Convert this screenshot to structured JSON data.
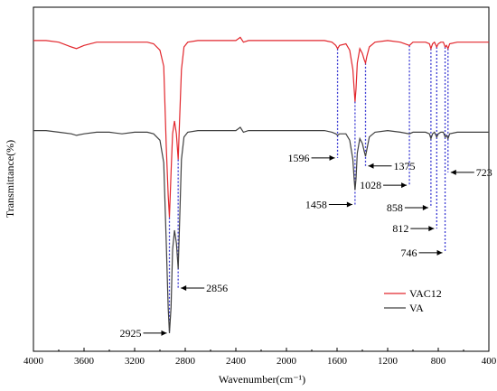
{
  "chart_data": {
    "type": "line",
    "title": "",
    "xlabel": "Wavenumber(cm⁻¹)",
    "ylabel": "Transmittance(%)",
    "xlim": [
      4000,
      400
    ],
    "x_reversed": true,
    "x_ticks": [
      4000,
      3600,
      3200,
      2800,
      2400,
      2000,
      1600,
      1200,
      800,
      400
    ],
    "y_tick_labels": false,
    "legend_position": "bottom-right",
    "series": [
      {
        "name": "VAC12",
        "color": "#e2272d",
        "baseline": 0.93,
        "points": [
          [
            4000,
            0.93
          ],
          [
            3900,
            0.93
          ],
          [
            3800,
            0.925
          ],
          [
            3700,
            0.91
          ],
          [
            3660,
            0.905
          ],
          [
            3600,
            0.915
          ],
          [
            3500,
            0.925
          ],
          [
            3400,
            0.925
          ],
          [
            3300,
            0.925
          ],
          [
            3200,
            0.925
          ],
          [
            3100,
            0.925
          ],
          [
            3050,
            0.92
          ],
          [
            3000,
            0.9
          ],
          [
            2970,
            0.85
          ],
          [
            2950,
            0.6
          ],
          [
            2935,
            0.45
          ],
          [
            2925,
            0.38
          ],
          [
            2912,
            0.52
          ],
          [
            2900,
            0.64
          ],
          [
            2885,
            0.68
          ],
          [
            2870,
            0.64
          ],
          [
            2856,
            0.56
          ],
          [
            2845,
            0.68
          ],
          [
            2830,
            0.84
          ],
          [
            2810,
            0.91
          ],
          [
            2780,
            0.925
          ],
          [
            2700,
            0.93
          ],
          [
            2600,
            0.93
          ],
          [
            2500,
            0.93
          ],
          [
            2400,
            0.93
          ],
          [
            2365,
            0.94
          ],
          [
            2340,
            0.925
          ],
          [
            2300,
            0.93
          ],
          [
            2200,
            0.93
          ],
          [
            2100,
            0.93
          ],
          [
            2000,
            0.93
          ],
          [
            1900,
            0.93
          ],
          [
            1800,
            0.93
          ],
          [
            1700,
            0.93
          ],
          [
            1640,
            0.925
          ],
          [
            1610,
            0.915
          ],
          [
            1596,
            0.905
          ],
          [
            1580,
            0.915
          ],
          [
            1530,
            0.92
          ],
          [
            1500,
            0.9
          ],
          [
            1475,
            0.84
          ],
          [
            1465,
            0.78
          ],
          [
            1458,
            0.74
          ],
          [
            1450,
            0.78
          ],
          [
            1440,
            0.86
          ],
          [
            1420,
            0.905
          ],
          [
            1400,
            0.89
          ],
          [
            1385,
            0.87
          ],
          [
            1375,
            0.86
          ],
          [
            1365,
            0.88
          ],
          [
            1345,
            0.91
          ],
          [
            1300,
            0.925
          ],
          [
            1200,
            0.93
          ],
          [
            1100,
            0.925
          ],
          [
            1028,
            0.915
          ],
          [
            1000,
            0.925
          ],
          [
            900,
            0.925
          ],
          [
            870,
            0.92
          ],
          [
            858,
            0.905
          ],
          [
            845,
            0.92
          ],
          [
            830,
            0.925
          ],
          [
            812,
            0.91
          ],
          [
            800,
            0.92
          ],
          [
            780,
            0.925
          ],
          [
            760,
            0.925
          ],
          [
            746,
            0.91
          ],
          [
            735,
            0.915
          ],
          [
            723,
            0.905
          ],
          [
            710,
            0.92
          ],
          [
            650,
            0.925
          ],
          [
            600,
            0.925
          ],
          [
            500,
            0.925
          ],
          [
            400,
            0.925
          ]
        ]
      },
      {
        "name": "VA",
        "color": "#404040",
        "baseline": 0.65,
        "points": [
          [
            4000,
            0.65
          ],
          [
            3900,
            0.65
          ],
          [
            3800,
            0.645
          ],
          [
            3700,
            0.64
          ],
          [
            3660,
            0.635
          ],
          [
            3600,
            0.64
          ],
          [
            3500,
            0.645
          ],
          [
            3400,
            0.645
          ],
          [
            3300,
            0.64
          ],
          [
            3200,
            0.645
          ],
          [
            3100,
            0.645
          ],
          [
            3050,
            0.64
          ],
          [
            3000,
            0.62
          ],
          [
            2970,
            0.55
          ],
          [
            2950,
            0.3
          ],
          [
            2935,
            0.1
          ],
          [
            2925,
            0.02
          ],
          [
            2912,
            0.1
          ],
          [
            2900,
            0.28
          ],
          [
            2885,
            0.34
          ],
          [
            2870,
            0.3
          ],
          [
            2856,
            0.22
          ],
          [
            2845,
            0.36
          ],
          [
            2830,
            0.56
          ],
          [
            2810,
            0.63
          ],
          [
            2780,
            0.645
          ],
          [
            2700,
            0.65
          ],
          [
            2600,
            0.65
          ],
          [
            2500,
            0.65
          ],
          [
            2400,
            0.65
          ],
          [
            2365,
            0.66
          ],
          [
            2340,
            0.645
          ],
          [
            2300,
            0.65
          ],
          [
            2200,
            0.65
          ],
          [
            2100,
            0.65
          ],
          [
            2000,
            0.65
          ],
          [
            1900,
            0.65
          ],
          [
            1800,
            0.65
          ],
          [
            1700,
            0.65
          ],
          [
            1640,
            0.645
          ],
          [
            1610,
            0.64
          ],
          [
            1596,
            0.635
          ],
          [
            1580,
            0.64
          ],
          [
            1530,
            0.64
          ],
          [
            1500,
            0.62
          ],
          [
            1475,
            0.56
          ],
          [
            1465,
            0.5
          ],
          [
            1458,
            0.465
          ],
          [
            1450,
            0.5
          ],
          [
            1440,
            0.58
          ],
          [
            1420,
            0.625
          ],
          [
            1400,
            0.61
          ],
          [
            1385,
            0.585
          ],
          [
            1375,
            0.57
          ],
          [
            1365,
            0.59
          ],
          [
            1345,
            0.63
          ],
          [
            1300,
            0.645
          ],
          [
            1200,
            0.65
          ],
          [
            1100,
            0.645
          ],
          [
            1028,
            0.64
          ],
          [
            1000,
            0.645
          ],
          [
            900,
            0.645
          ],
          [
            870,
            0.64
          ],
          [
            858,
            0.625
          ],
          [
            845,
            0.64
          ],
          [
            830,
            0.645
          ],
          [
            812,
            0.63
          ],
          [
            800,
            0.64
          ],
          [
            780,
            0.645
          ],
          [
            760,
            0.645
          ],
          [
            746,
            0.63
          ],
          [
            735,
            0.635
          ],
          [
            723,
            0.625
          ],
          [
            710,
            0.64
          ],
          [
            650,
            0.645
          ],
          [
            600,
            0.645
          ],
          [
            500,
            0.645
          ],
          [
            400,
            0.645
          ]
        ]
      }
    ],
    "reference_lines": [
      2925,
      2856,
      1596,
      1458,
      1375,
      1028,
      858,
      812,
      746,
      723
    ],
    "annotations": [
      {
        "label": "2925",
        "x": 2925,
        "y": 0.02,
        "side": "left"
      },
      {
        "label": "2856",
        "x": 2856,
        "y": 0.16,
        "side": "right"
      },
      {
        "label": "1596",
        "x": 1596,
        "y": 0.565,
        "side": "left"
      },
      {
        "label": "1375",
        "x": 1375,
        "y": 0.54,
        "side": "right"
      },
      {
        "label": "1458",
        "x": 1458,
        "y": 0.42,
        "side": "left"
      },
      {
        "label": "1028",
        "x": 1028,
        "y": 0.48,
        "side": "left"
      },
      {
        "label": "858",
        "x": 858,
        "y": 0.41,
        "side": "left"
      },
      {
        "label": "723",
        "x": 723,
        "y": 0.52,
        "side": "right"
      },
      {
        "label": "812",
        "x": 812,
        "y": 0.345,
        "side": "left"
      },
      {
        "label": "746",
        "x": 746,
        "y": 0.27,
        "side": "left"
      }
    ],
    "ref_line_color": "#3b3bd4"
  }
}
